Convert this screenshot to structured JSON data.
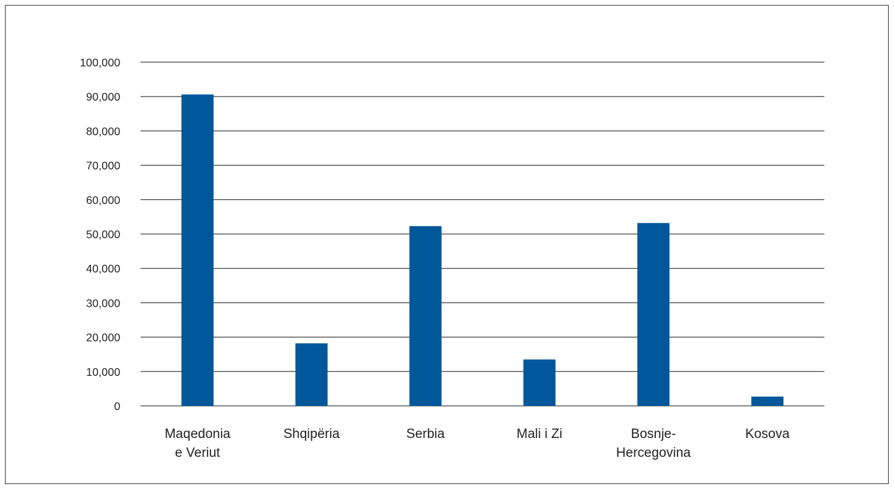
{
  "chart_data": {
    "type": "bar",
    "categories": [
      [
        "Maqedonia",
        "e Veriut"
      ],
      [
        "Shqipëria"
      ],
      [
        "Serbia"
      ],
      [
        "Mali i Zi"
      ],
      [
        "Bosnje-",
        "Hercegovina"
      ],
      [
        "Kosova"
      ]
    ],
    "values": [
      90600,
      18200,
      52300,
      13500,
      53200,
      2700
    ],
    "ylim": [
      0,
      100000
    ],
    "yticks": [
      "0",
      "10,000",
      "20,000",
      "30,000",
      "40,000",
      "50,000",
      "60,000",
      "70,000",
      "80,000",
      "90,000",
      "100,000"
    ],
    "bar_color": "#00579A",
    "grid": true,
    "legend": "none",
    "title": "",
    "xlabel": "",
    "ylabel": ""
  }
}
